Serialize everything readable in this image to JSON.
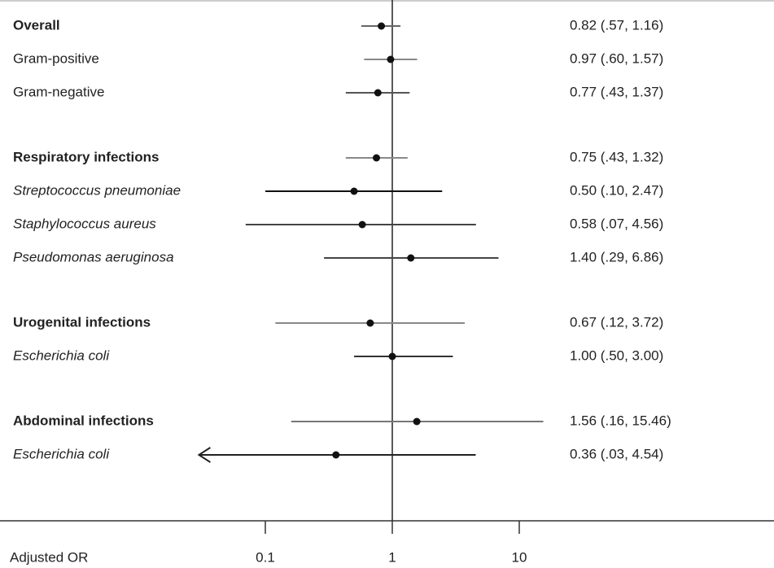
{
  "chart_data": {
    "type": "forest",
    "x_label": "Adjusted OR",
    "log_x": true,
    "xlim": [
      0.001,
      1000
    ],
    "xticks": [
      0.1,
      1,
      10
    ],
    "reference": 1,
    "groups": [
      {
        "rows": [
          {
            "label": "Overall",
            "style": "bold",
            "color": "#666",
            "or": 0.82,
            "lower": 0.57,
            "upper": 1.16,
            "value_label": "0.82 (.57, 1.16)"
          },
          {
            "label": "Gram-positive",
            "style": "normal",
            "color": "#888",
            "or": 0.97,
            "lower": 0.6,
            "upper": 1.57,
            "value_label": "0.97 (.60, 1.57)"
          },
          {
            "label": "Gram-negative",
            "style": "normal",
            "color": "#555",
            "or": 0.77,
            "lower": 0.43,
            "upper": 1.37,
            "value_label": "0.77 (.43, 1.37)"
          }
        ]
      },
      {
        "rows": [
          {
            "label": "Respiratory infections",
            "style": "bold",
            "color": "#888",
            "or": 0.75,
            "lower": 0.43,
            "upper": 1.32,
            "value_label": "0.75 (.43, 1.32)"
          },
          {
            "label": "Streptococcus pneumoniae",
            "style": "italic",
            "color": "#111",
            "or": 0.5,
            "lower": 0.1,
            "upper": 2.47,
            "value_label": "0.50 (.10, 2.47)"
          },
          {
            "label": "Staphylococcus aureus",
            "style": "italic",
            "color": "#444",
            "or": 0.58,
            "lower": 0.07,
            "upper": 4.56,
            "value_label": "0.58 (.07, 4.56)"
          },
          {
            "label": "Pseudomonas aeruginosa",
            "style": "italic",
            "color": "#444",
            "or": 1.4,
            "lower": 0.29,
            "upper": 6.86,
            "value_label": "1.40 (.29, 6.86)"
          }
        ]
      },
      {
        "rows": [
          {
            "label": "Urogenital infections",
            "style": "bold",
            "color": "#888",
            "or": 0.67,
            "lower": 0.12,
            "upper": 3.72,
            "value_label": "0.67 (.12, 3.72)"
          },
          {
            "label": "Escherichia coli",
            "style": "italic",
            "color": "#333",
            "or": 1.0,
            "lower": 0.5,
            "upper": 3.0,
            "value_label": "1.00 (.50, 3.00)"
          }
        ]
      },
      {
        "rows": [
          {
            "label": "Abdominal infections",
            "style": "bold",
            "color": "#777",
            "or": 1.56,
            "lower": 0.16,
            "upper": 15.46,
            "value_label": "1.56 (.16, 15.46)"
          },
          {
            "label": "Escherichia coli",
            "style": "italic",
            "color": "#222",
            "or": 0.36,
            "lower": 0.03,
            "upper": 4.54,
            "value_label": "0.36 (.03, 4.54)",
            "arrow_left": true
          }
        ]
      }
    ]
  }
}
